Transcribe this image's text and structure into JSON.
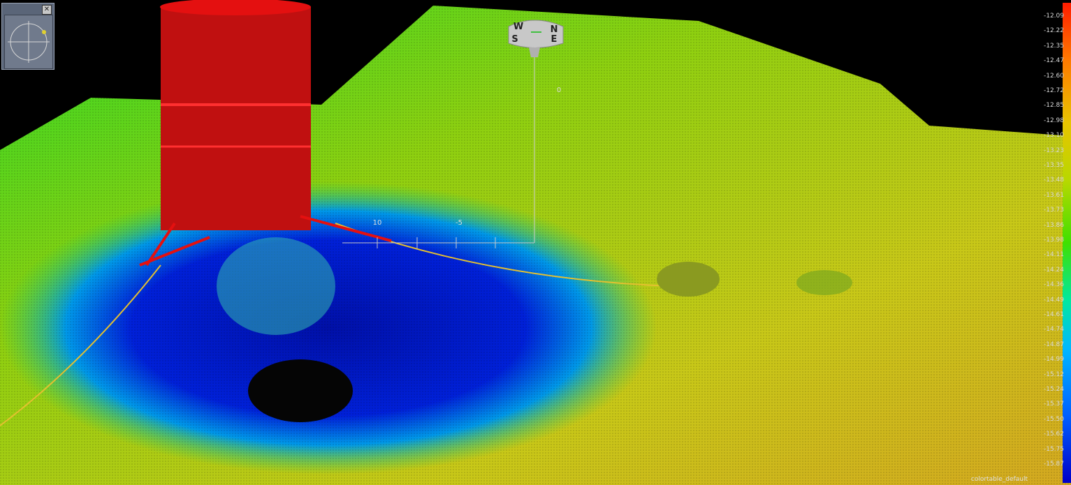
{
  "compass_panel": {
    "close_label": "✕"
  },
  "compass_badge": {
    "labels": [
      "W",
      "N",
      "S",
      "E"
    ]
  },
  "axis_labels": [
    "10",
    "-5",
    "0"
  ],
  "colorbar": {
    "ticks": [
      "-12.09",
      "-12.22",
      "-12.35",
      "-12.47",
      "-12.60",
      "-12.72",
      "-12.85",
      "-12.98",
      "-13.10",
      "-13.23",
      "-13.35",
      "-13.48",
      "-13.61",
      "-13.73",
      "-13.86",
      "-13.98",
      "-14.11",
      "-14.24",
      "-14.36",
      "-14.49",
      "-14.61",
      "-14.74",
      "-14.87",
      "-14.99",
      "-15.12",
      "-15.24",
      "-15.37",
      "-15.50",
      "-15.62",
      "-15.75",
      "-15.87"
    ]
  },
  "colortable_label": "colortable_default",
  "colors": {
    "shallow": "#ff1c00",
    "mid": "#b8d800",
    "deep": "#0000c8",
    "structure": "#e41010",
    "background": "#000000"
  }
}
